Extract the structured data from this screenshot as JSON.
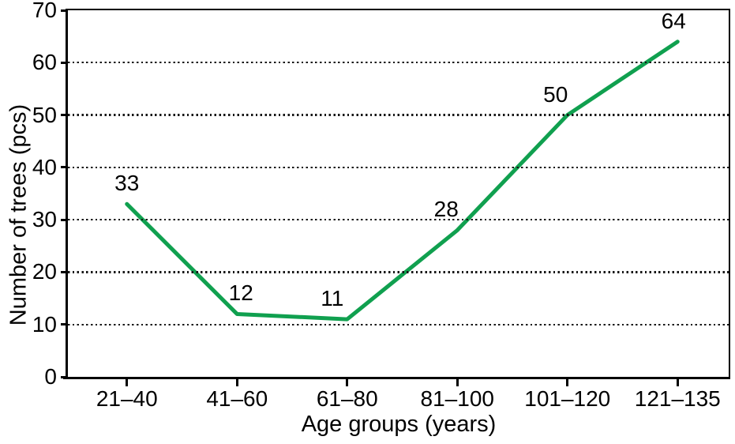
{
  "chart_data": {
    "type": "line",
    "title": "",
    "xlabel": "Age groups (years)",
    "ylabel": "Number of trees (pcs)",
    "categories": [
      "21–40",
      "41–60",
      "61–80",
      "81–100",
      "101–120",
      "121–135"
    ],
    "values": [
      33,
      12,
      11,
      28,
      50,
      64
    ],
    "data_labels": [
      "33",
      "12",
      "11",
      "28",
      "50",
      "64"
    ],
    "yticks": [
      0,
      10,
      20,
      30,
      40,
      50,
      60,
      70
    ],
    "ylim": [
      0,
      70
    ],
    "grid": "horizontal-dotted",
    "legend": "none",
    "line_color": "#10a04f",
    "axis_color": "#000000",
    "grid_color": "#161616",
    "text_color": "#000000",
    "background": "#ffffff",
    "label_dx": [
      0,
      5,
      -19,
      -14,
      -15,
      -5
    ]
  }
}
